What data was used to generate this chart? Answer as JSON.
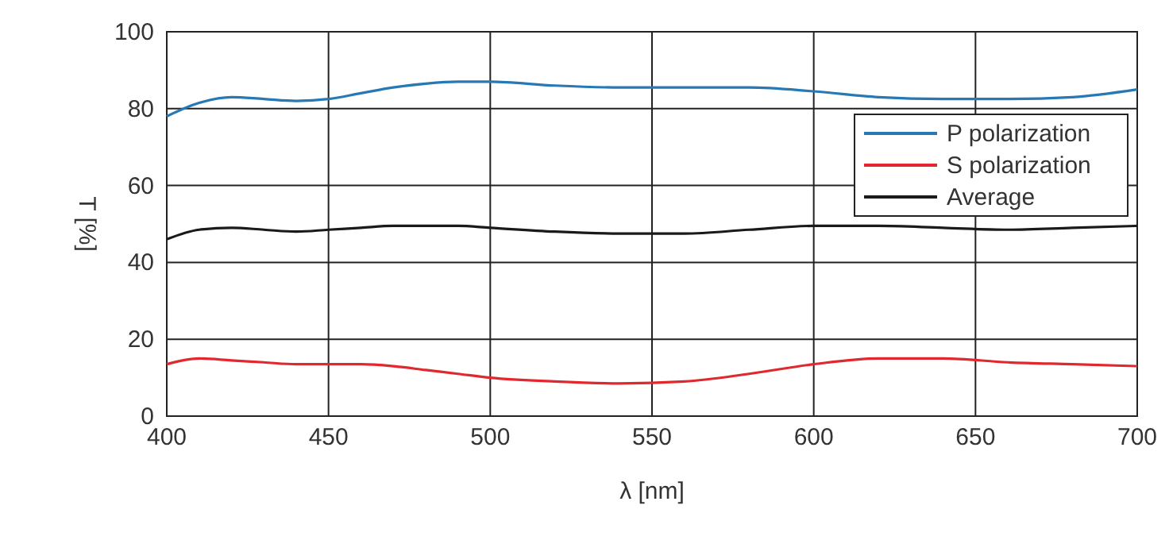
{
  "chart_data": {
    "type": "line",
    "xlabel": "λ [nm]",
    "ylabel": "T [%]",
    "x": [
      400,
      410,
      420,
      430,
      440,
      450,
      460,
      470,
      480,
      490,
      500,
      520,
      540,
      560,
      580,
      600,
      620,
      640,
      660,
      680,
      700
    ],
    "series": [
      {
        "name": "P polarization",
        "color": "#2878b4",
        "values": [
          78,
          81.5,
          83,
          82.5,
          82,
          82.5,
          84,
          85.5,
          86.5,
          87,
          87,
          86,
          85.5,
          85.5,
          85.5,
          84.5,
          83,
          82.5,
          82.5,
          83,
          85
        ]
      },
      {
        "name": "S polarization",
        "color": "#e0282e",
        "values": [
          13.5,
          15,
          14.5,
          14,
          13.5,
          13.5,
          13.5,
          13,
          12,
          11,
          10,
          9,
          8.5,
          9,
          11,
          13.5,
          15,
          15,
          14,
          13.5,
          13
        ]
      },
      {
        "name": "Average",
        "color": "#1a1a1a",
        "values": [
          46,
          48.5,
          49,
          48.5,
          48,
          48.5,
          49,
          49.5,
          49.5,
          49.5,
          49,
          48,
          47.5,
          47.5,
          48.5,
          49.5,
          49.5,
          49,
          48.5,
          49,
          49.5
        ]
      }
    ],
    "xlim": [
      400,
      700
    ],
    "ylim": [
      0,
      100
    ],
    "xticks": [
      400,
      450,
      500,
      550,
      600,
      650,
      700
    ],
    "yticks": [
      0,
      20,
      40,
      60,
      80,
      100
    ],
    "grid": true,
    "legend": "right",
    "marker": "none",
    "line_style": "solid"
  }
}
